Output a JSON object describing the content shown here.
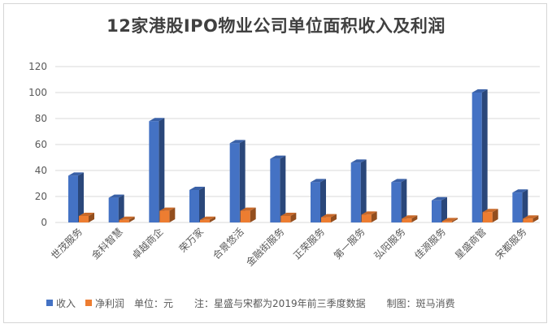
{
  "chart_data": {
    "type": "bar",
    "title": "12家港股IPO物业公司单位面积收入及利润",
    "categories": [
      "世茂服务",
      "金科智慧",
      "卓越商企",
      "荣万家",
      "合景悠活",
      "金融街服务",
      "正荣服务",
      "第一服务",
      "弘阳服务",
      "佳源服务",
      "星盛商管",
      "宋都服务"
    ],
    "series": [
      {
        "name": "收入",
        "color": "#4472C4",
        "values": [
          36,
          19,
          78,
          25,
          61,
          49,
          31,
          46,
          31,
          17,
          100,
          23
        ]
      },
      {
        "name": "净利润",
        "color": "#ED7D31",
        "values": [
          5,
          2,
          9,
          2,
          9,
          5,
          4,
          6,
          3,
          1,
          8,
          3
        ]
      }
    ],
    "ylim": [
      0,
      120
    ],
    "yticks": [
      0,
      20,
      40,
      60,
      80,
      100,
      120
    ],
    "grid": true,
    "legend_position": "bottom-left"
  },
  "footer": {
    "unit_note": "单位：元",
    "note": "注：星盛与宋都为2019年前三季度数据",
    "credit": "制图：斑马消费"
  }
}
